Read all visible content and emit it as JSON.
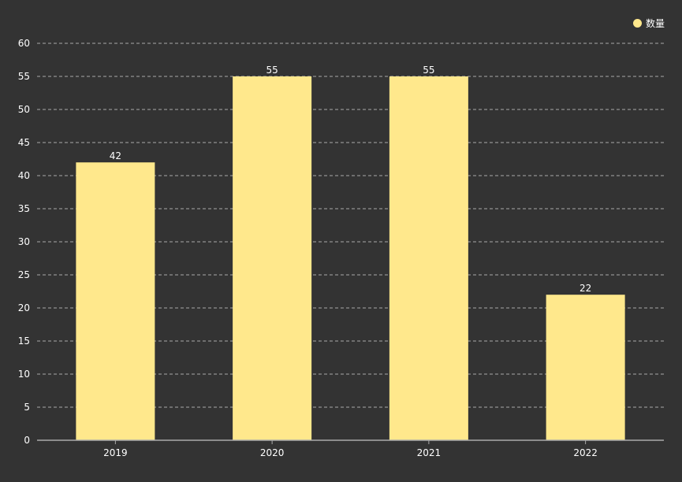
{
  "chart_data": {
    "type": "bar",
    "categories": [
      "2019",
      "2020",
      "2021",
      "2022"
    ],
    "series": [
      {
        "name": "数量",
        "values": [
          42,
          55,
          55,
          22
        ]
      }
    ],
    "ylim": [
      0,
      60
    ],
    "yticks": [
      0,
      5,
      10,
      15,
      20,
      25,
      30,
      35,
      40,
      45,
      50,
      55,
      60
    ],
    "grid": true,
    "legend_position": "top-right",
    "colors": {
      "bar": "#FFE88C",
      "background": "#333333",
      "grid": "#aaaaaa",
      "axis": "#aaaaaa",
      "text": "#ffffff"
    }
  }
}
